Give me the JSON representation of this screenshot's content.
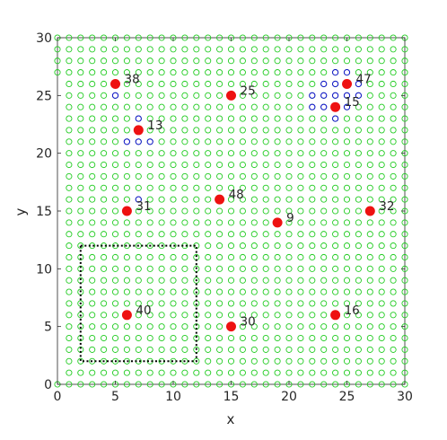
{
  "chart_data": {
    "type": "scatter",
    "title": "",
    "xlabel": "x",
    "ylabel": "y",
    "xlim": [
      0,
      30
    ],
    "ylim": [
      0,
      30
    ],
    "xticks": [
      0,
      5,
      10,
      15,
      20,
      25,
      30
    ],
    "yticks": [
      0,
      5,
      10,
      15,
      20,
      25,
      30
    ],
    "grid": false,
    "colors": {
      "grid_nodes": "#22cc22",
      "blue_nodes": "#1111cc",
      "red_nodes": "#ee1111",
      "rectangle": "#000000"
    },
    "grid_nodes": {
      "step": 1,
      "x_range": [
        0,
        30
      ],
      "y_range": [
        0,
        30
      ],
      "gap_at_x0_y": [
        1,
        2,
        3,
        4,
        5,
        6,
        7,
        8,
        9,
        10,
        11,
        12,
        13,
        14,
        15,
        16,
        17,
        18,
        19,
        20,
        21,
        22,
        23,
        24,
        25,
        26
      ]
    },
    "blue_nodes": [
      [
        5,
        25
      ],
      [
        7,
        23
      ],
      [
        6,
        21
      ],
      [
        7,
        21
      ],
      [
        8,
        21
      ],
      [
        7,
        16
      ],
      [
        24,
        27
      ],
      [
        25,
        27
      ],
      [
        23,
        26
      ],
      [
        24,
        26
      ],
      [
        26,
        26
      ],
      [
        22,
        25
      ],
      [
        23,
        25
      ],
      [
        24,
        25
      ],
      [
        25,
        25
      ],
      [
        26,
        25
      ],
      [
        22,
        24
      ],
      [
        23,
        24
      ],
      [
        25,
        24
      ],
      [
        24,
        23
      ]
    ],
    "red_nodes": [
      {
        "label": "38",
        "x": 5,
        "y": 26
      },
      {
        "label": "13",
        "x": 7,
        "y": 22
      },
      {
        "label": "25",
        "x": 15,
        "y": 25
      },
      {
        "label": "47",
        "x": 25,
        "y": 26
      },
      {
        "label": "15",
        "x": 24,
        "y": 24
      },
      {
        "label": "48",
        "x": 14,
        "y": 16
      },
      {
        "label": "31",
        "x": 6,
        "y": 15
      },
      {
        "label": "9",
        "x": 19,
        "y": 14
      },
      {
        "label": "32",
        "x": 27,
        "y": 15
      },
      {
        "label": "40",
        "x": 6,
        "y": 6
      },
      {
        "label": "30",
        "x": 15,
        "y": 5
      },
      {
        "label": "16",
        "x": 24,
        "y": 6
      }
    ],
    "rectangle": {
      "x": [
        2,
        12
      ],
      "y": [
        2,
        12
      ],
      "style": "dotted"
    }
  }
}
